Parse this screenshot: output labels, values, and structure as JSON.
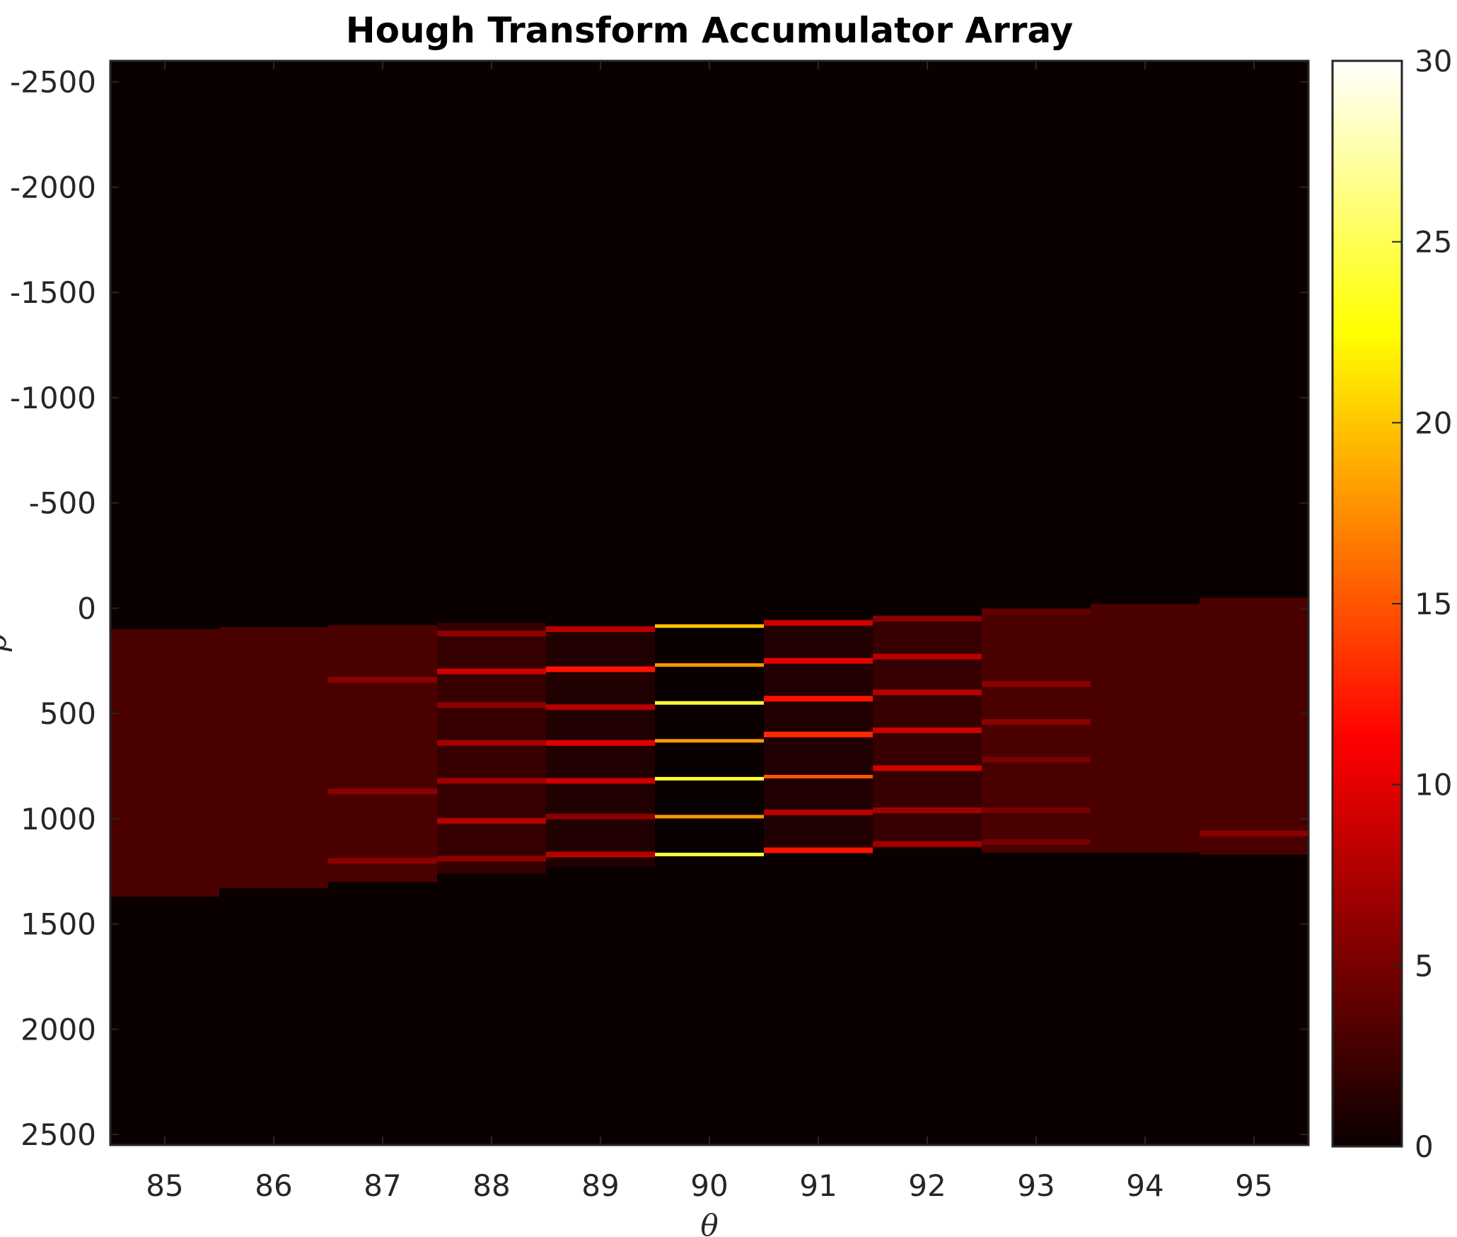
{
  "chart_data": {
    "type": "heatmap",
    "title": "Hough Transform Accumulator Array",
    "xlabel": "θ",
    "ylabel": "ρ",
    "x_ticks": [
      "85",
      "86",
      "87",
      "88",
      "89",
      "90",
      "91",
      "92",
      "93",
      "94",
      "95"
    ],
    "y_ticks": [
      "-2500",
      "-2000",
      "-1500",
      "-1000",
      "-500",
      "0",
      "500",
      "1000",
      "1500",
      "2000",
      "2500"
    ],
    "xlim": [
      84.5,
      95.5
    ],
    "ylim": [
      -2600,
      2550
    ],
    "y_direction": "reversed",
    "colormap": "hot",
    "colorbar": {
      "min": 0,
      "max": 30,
      "ticks": [
        "0",
        "5",
        "10",
        "15",
        "20",
        "25",
        "30"
      ]
    },
    "colors": {
      "background": "#0a0000",
      "frame": "#262626"
    },
    "theta_columns": [
      {
        "theta": 85,
        "rho_range": [
          100,
          1370
        ],
        "band_value": 3,
        "peaks": []
      },
      {
        "theta": 86,
        "rho_range": [
          90,
          1330
        ],
        "band_value": 3,
        "peaks": []
      },
      {
        "theta": 87,
        "rho_range": [
          80,
          1300
        ],
        "band_value": 3,
        "peaks": [
          {
            "rho": 340,
            "value": 6
          },
          {
            "rho": 870,
            "value": 6
          },
          {
            "rho": 1200,
            "value": 6
          }
        ]
      },
      {
        "theta": 88,
        "rho_range": [
          70,
          1260
        ],
        "band_value": 2,
        "peaks": [
          {
            "rho": 120,
            "value": 6
          },
          {
            "rho": 300,
            "value": 9
          },
          {
            "rho": 460,
            "value": 6
          },
          {
            "rho": 640,
            "value": 7
          },
          {
            "rho": 820,
            "value": 7
          },
          {
            "rho": 1010,
            "value": 8
          },
          {
            "rho": 1190,
            "value": 6
          }
        ]
      },
      {
        "theta": 89,
        "rho_range": [
          80,
          1230
        ],
        "band_value": 1,
        "peaks": [
          {
            "rho": 100,
            "value": 8
          },
          {
            "rho": 290,
            "value": 12
          },
          {
            "rho": 470,
            "value": 8
          },
          {
            "rho": 640,
            "value": 10
          },
          {
            "rho": 820,
            "value": 9
          },
          {
            "rho": 990,
            "value": 6
          },
          {
            "rho": 1170,
            "value": 8
          }
        ]
      },
      {
        "theta": 90,
        "rho_range": [
          80,
          1180
        ],
        "band_value": 0,
        "peaks": [
          {
            "rho": 85,
            "value": 20
          },
          {
            "rho": 270,
            "value": 18
          },
          {
            "rho": 450,
            "value": 24
          },
          {
            "rho": 630,
            "value": 18
          },
          {
            "rho": 810,
            "value": 24
          },
          {
            "rho": 990,
            "value": 18
          },
          {
            "rho": 1170,
            "value": 24
          }
        ]
      },
      {
        "theta": 91,
        "rho_range": [
          60,
          1160
        ],
        "band_value": 1,
        "peaks": [
          {
            "rho": 70,
            "value": 9
          },
          {
            "rho": 250,
            "value": 10
          },
          {
            "rho": 430,
            "value": 12
          },
          {
            "rho": 600,
            "value": 13
          },
          {
            "rho": 800,
            "value": 15
          },
          {
            "rho": 970,
            "value": 8
          },
          {
            "rho": 1150,
            "value": 12
          }
        ]
      },
      {
        "theta": 92,
        "rho_range": [
          40,
          1140
        ],
        "band_value": 2,
        "peaks": [
          {
            "rho": 50,
            "value": 6
          },
          {
            "rho": 230,
            "value": 8
          },
          {
            "rho": 400,
            "value": 8
          },
          {
            "rho": 580,
            "value": 9
          },
          {
            "rho": 760,
            "value": 9
          },
          {
            "rho": 960,
            "value": 7
          },
          {
            "rho": 1120,
            "value": 7
          }
        ]
      },
      {
        "theta": 93,
        "rho_range": [
          0,
          1160
        ],
        "band_value": 3,
        "peaks": [
          {
            "rho": 20,
            "value": 4
          },
          {
            "rho": 360,
            "value": 6
          },
          {
            "rho": 540,
            "value": 6
          },
          {
            "rho": 720,
            "value": 5
          },
          {
            "rho": 960,
            "value": 5
          },
          {
            "rho": 1110,
            "value": 5
          }
        ]
      },
      {
        "theta": 94,
        "rho_range": [
          -20,
          1160
        ],
        "band_value": 3,
        "peaks": []
      },
      {
        "theta": 95,
        "rho_range": [
          -50,
          1170
        ],
        "band_value": 3,
        "peaks": [
          {
            "rho": 1070,
            "value": 6
          }
        ]
      }
    ]
  }
}
